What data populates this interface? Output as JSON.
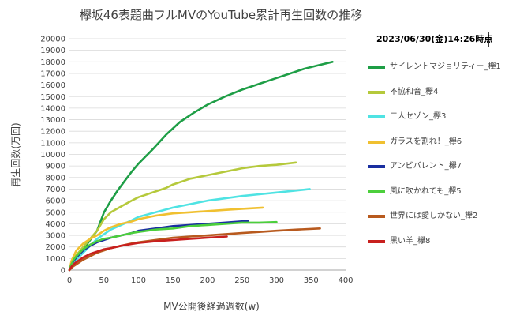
{
  "header": {
    "title": "欅坂46表題曲フルMVのYouTube累計再生回数の推移",
    "timestamp": "2023/06/30(金)14:26時点"
  },
  "chart_data": {
    "type": "line",
    "title": "欅坂46表題曲フルMVのYouTube累計再生回数の推移",
    "xlabel": "MV公開後経過週数(w)",
    "ylabel": "再生回数(万回)",
    "xlim": [
      0,
      400
    ],
    "ylim": [
      0,
      20000
    ],
    "x_ticks": [
      0,
      50,
      100,
      150,
      200,
      250,
      300,
      350,
      400
    ],
    "y_ticks": [
      0,
      1000,
      2000,
      3000,
      4000,
      5000,
      6000,
      7000,
      8000,
      9000,
      10000,
      11000,
      12000,
      13000,
      14000,
      15000,
      16000,
      17000,
      18000,
      19000,
      20000
    ],
    "grid": "horizontal",
    "legend_position": "right",
    "series": [
      {
        "name": "サイレントマジョリティー_欅1",
        "color": "#1e9e46",
        "x": [
          0,
          5,
          10,
          20,
          30,
          40,
          45,
          50,
          60,
          70,
          80,
          90,
          100,
          120,
          140,
          160,
          180,
          200,
          225,
          250,
          275,
          300,
          320,
          340,
          360,
          381
        ],
        "y": [
          0,
          600,
          1000,
          1800,
          2600,
          3400,
          4200,
          5000,
          6000,
          6900,
          7700,
          8500,
          9200,
          10400,
          11700,
          12800,
          13600,
          14300,
          15000,
          15600,
          16100,
          16600,
          17000,
          17400,
          17700,
          18000
        ]
      },
      {
        "name": "不協和音_欅4",
        "color": "#b5c93b",
        "x": [
          0,
          5,
          10,
          20,
          30,
          40,
          50,
          60,
          75,
          90,
          100,
          110,
          125,
          140,
          150,
          175,
          200,
          225,
          250,
          275,
          300,
          328
        ],
        "y": [
          0,
          800,
          1300,
          2000,
          2700,
          3400,
          4400,
          5000,
          5500,
          6000,
          6300,
          6500,
          6800,
          7100,
          7400,
          7900,
          8200,
          8500,
          8800,
          9000,
          9100,
          9300
        ]
      },
      {
        "name": "二人セゾン_欅3",
        "color": "#4fe3e3",
        "x": [
          0,
          5,
          10,
          20,
          30,
          40,
          50,
          60,
          75,
          90,
          100,
          125,
          150,
          175,
          200,
          225,
          250,
          275,
          300,
          325,
          348
        ],
        "y": [
          0,
          500,
          900,
          1500,
          2100,
          2700,
          3100,
          3500,
          3900,
          4300,
          4600,
          5000,
          5400,
          5700,
          6000,
          6200,
          6400,
          6550,
          6700,
          6850,
          7000
        ]
      },
      {
        "name": "ガラスを割れ！_欅6",
        "color": "#f0c030",
        "x": [
          0,
          3,
          6,
          10,
          15,
          20,
          30,
          40,
          50,
          60,
          75,
          90,
          100,
          125,
          150,
          175,
          200,
          225,
          250,
          280
        ],
        "y": [
          0,
          800,
          1200,
          1700,
          2000,
          2300,
          2700,
          3000,
          3400,
          3700,
          4000,
          4200,
          4400,
          4700,
          4900,
          5000,
          5100,
          5200,
          5300,
          5400
        ]
      },
      {
        "name": "アンビバレント_欅7",
        "color": "#1a2fa0",
        "x": [
          0,
          3,
          6,
          10,
          15,
          20,
          30,
          40,
          50,
          60,
          75,
          90,
          100,
          125,
          150,
          175,
          200,
          225,
          259
        ],
        "y": [
          0,
          500,
          800,
          1100,
          1400,
          1700,
          2100,
          2400,
          2600,
          2800,
          3000,
          3200,
          3400,
          3600,
          3800,
          3900,
          4000,
          4100,
          4250
        ]
      },
      {
        "name": "風に吹かれても_欅5",
        "color": "#4ccf3c",
        "x": [
          0,
          3,
          6,
          10,
          15,
          20,
          30,
          40,
          50,
          60,
          75,
          90,
          100,
          125,
          150,
          175,
          200,
          225,
          250,
          275,
          300
        ],
        "y": [
          0,
          500,
          900,
          1200,
          1500,
          1800,
          2200,
          2500,
          2700,
          2800,
          3000,
          3200,
          3300,
          3500,
          3600,
          3800,
          3900,
          4000,
          4100,
          4100,
          4150
        ]
      },
      {
        "name": "世界には愛しかない_欅2",
        "color": "#b85a1e",
        "x": [
          0,
          5,
          10,
          20,
          30,
          40,
          50,
          60,
          75,
          90,
          100,
          125,
          150,
          175,
          200,
          225,
          250,
          275,
          300,
          330,
          363
        ],
        "y": [
          0,
          300,
          500,
          900,
          1200,
          1500,
          1700,
          1900,
          2100,
          2300,
          2400,
          2600,
          2800,
          2900,
          3000,
          3100,
          3200,
          3300,
          3400,
          3500,
          3600
        ]
      },
      {
        "name": "黒い羊_欅8",
        "color": "#c8201e",
        "x": [
          0,
          3,
          6,
          10,
          15,
          20,
          30,
          40,
          50,
          60,
          75,
          90,
          100,
          125,
          150,
          175,
          200,
          228
        ],
        "y": [
          0,
          300,
          500,
          700,
          900,
          1100,
          1400,
          1600,
          1800,
          1900,
          2100,
          2250,
          2350,
          2500,
          2600,
          2700,
          2800,
          2900
        ]
      }
    ]
  }
}
